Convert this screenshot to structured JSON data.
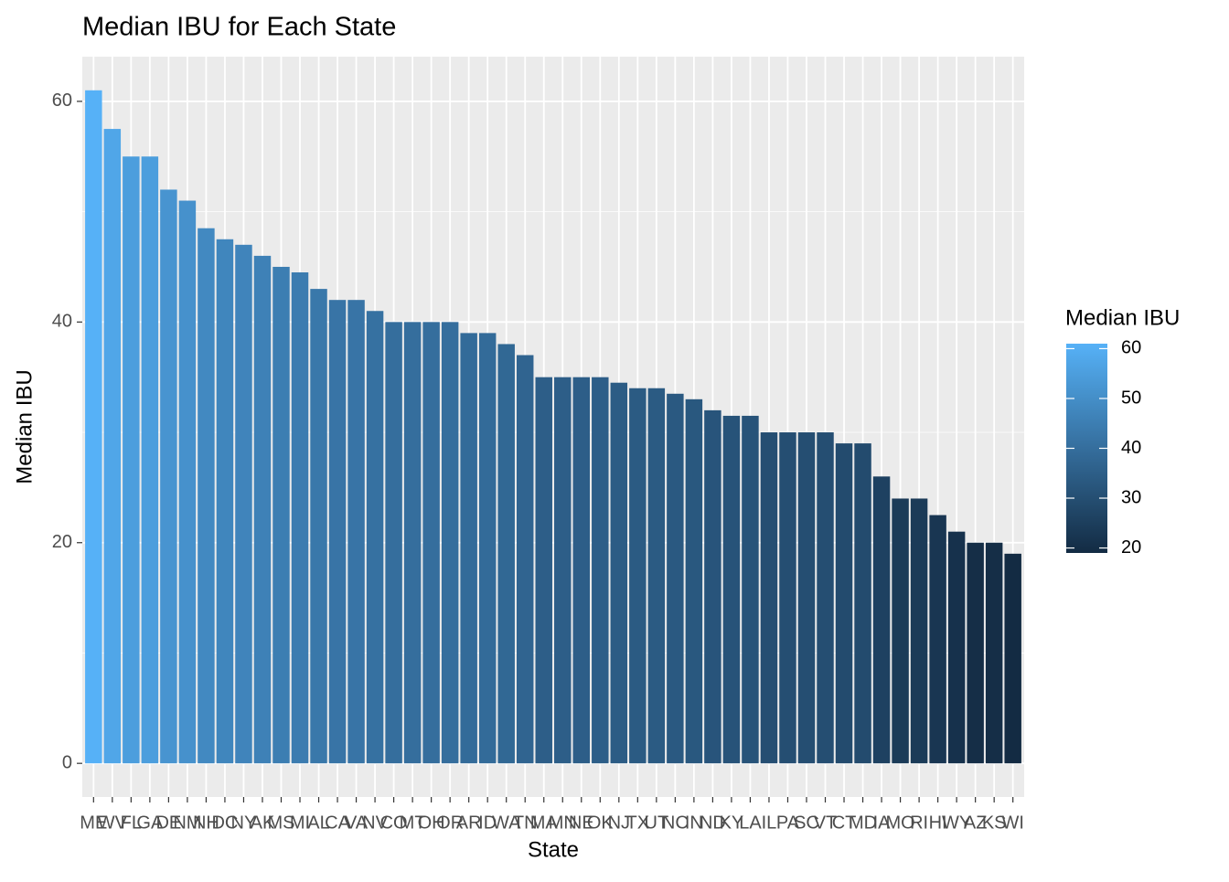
{
  "chart_data": {
    "type": "bar",
    "title": "Median IBU for Each State",
    "x_label": "State",
    "y_label": "Median IBU",
    "legend_title": "Median IBU",
    "categories": [
      "ME",
      "WV",
      "FL",
      "GA",
      "DE",
      "NM",
      "NH",
      "DC",
      "NY",
      "AK",
      "MS",
      "MI",
      "AL",
      "CA",
      "VA",
      "NV",
      "CO",
      "MT",
      "OH",
      "OR",
      "AR",
      "ID",
      "WA",
      "TN",
      "MA",
      "MN",
      "NE",
      "OK",
      "NJ",
      "TX",
      "UT",
      "NC",
      "IN",
      "ND",
      "KY",
      "LA",
      "IL",
      "PA",
      "SC",
      "VT",
      "CT",
      "MD",
      "IA",
      "MO",
      "RI",
      "HI",
      "WY",
      "AZ",
      "KS",
      "WI"
    ],
    "values": [
      61,
      57.5,
      55,
      55,
      52,
      51,
      48.5,
      47.5,
      47,
      46,
      45,
      44.5,
      43,
      42,
      42,
      41,
      40,
      40,
      40,
      40,
      39,
      39,
      38,
      37,
      35,
      35,
      35,
      35,
      34.5,
      34,
      34,
      33.5,
      33,
      32,
      31.5,
      31.5,
      30,
      30,
      30,
      30,
      29,
      29,
      26,
      24,
      24,
      22.5,
      21,
      20,
      20,
      19
    ],
    "color_low": "#132B43",
    "color_high": "#56B1F7",
    "legend_ticks": [
      20,
      30,
      40,
      50,
      60
    ],
    "ylim": [
      -3.05,
      64.05
    ],
    "yticks": [
      0,
      20,
      40,
      60
    ],
    "y_minor_ticks": [
      10,
      30,
      50
    ],
    "grid": true
  }
}
